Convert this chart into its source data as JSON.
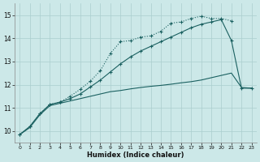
{
  "xlabel": "Humidex (Indice chaleur)",
  "bg_color": "#cce8e8",
  "grid_color": "#aacece",
  "line_color": "#1a6060",
  "xlim": [
    -0.5,
    23.5
  ],
  "ylim": [
    9.5,
    15.5
  ],
  "xticks": [
    0,
    1,
    2,
    3,
    4,
    5,
    6,
    7,
    8,
    9,
    10,
    11,
    12,
    13,
    14,
    15,
    16,
    17,
    18,
    19,
    20,
    21,
    22,
    23
  ],
  "yticks": [
    10,
    11,
    12,
    13,
    14,
    15
  ],
  "line1_x": [
    0,
    1,
    2,
    3,
    4,
    5,
    6,
    7,
    8,
    9,
    10,
    11,
    12,
    13,
    14,
    15,
    16,
    17,
    18,
    19,
    20,
    21
  ],
  "line1_y": [
    9.85,
    10.2,
    10.75,
    11.15,
    11.25,
    11.5,
    11.8,
    12.15,
    12.6,
    13.35,
    13.85,
    13.9,
    14.05,
    14.1,
    14.3,
    14.65,
    14.7,
    14.85,
    14.95,
    14.85,
    14.85,
    14.75
  ],
  "line2_x": [
    0,
    1,
    2,
    3,
    4,
    5,
    6,
    7,
    8,
    9,
    10,
    11,
    12,
    13,
    14,
    15,
    16,
    17,
    18,
    19,
    20,
    21,
    22,
    23
  ],
  "line2_y": [
    9.85,
    10.2,
    10.75,
    11.15,
    11.25,
    11.4,
    11.6,
    11.9,
    12.2,
    12.55,
    12.9,
    13.2,
    13.45,
    13.65,
    13.85,
    14.05,
    14.25,
    14.45,
    14.6,
    14.7,
    14.8,
    13.9,
    11.85,
    11.85
  ],
  "line3_x": [
    0,
    1,
    2,
    3,
    4,
    5,
    6,
    7,
    8,
    9,
    10,
    11,
    12,
    13,
    14,
    15,
    16,
    17,
    18,
    19,
    20,
    21,
    22,
    23
  ],
  "line3_y": [
    9.85,
    10.15,
    10.7,
    11.1,
    11.2,
    11.3,
    11.4,
    11.5,
    11.6,
    11.7,
    11.75,
    11.82,
    11.88,
    11.93,
    11.97,
    12.02,
    12.08,
    12.13,
    12.2,
    12.3,
    12.4,
    12.5,
    11.88,
    11.85
  ],
  "linewidth": 0.8,
  "markersize": 1.8
}
